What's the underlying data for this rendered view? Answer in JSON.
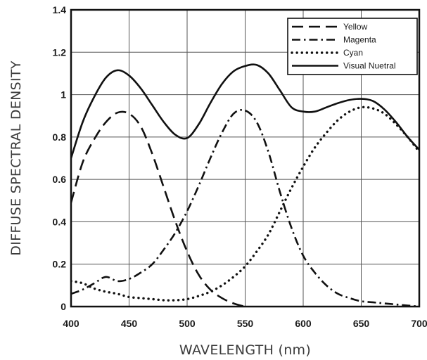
{
  "chart_data": {
    "type": "line",
    "xlabel": "WAVELENGTH (nm)",
    "ylabel": "DIFFUSE SPECTRAL DENSITY",
    "xlim": [
      400,
      700
    ],
    "ylim": [
      0,
      1.4
    ],
    "x_ticks": [
      "400",
      "450",
      "500",
      "550",
      "600",
      "650",
      "700"
    ],
    "y_ticks": [
      "0",
      "0.2",
      "0.4",
      "0.6",
      "0.8",
      "1",
      "1.2",
      "1.4"
    ],
    "grid": true,
    "legend_position": "top-right",
    "series": [
      {
        "name": "Yellow",
        "style": "dashed",
        "x": [
          400,
          410,
          420,
          430,
          440,
          450,
          460,
          470,
          480,
          490,
          500,
          510,
          520,
          530,
          540,
          550,
          560,
          580,
          600,
          620,
          640,
          660,
          680,
          700
        ],
        "y": [
          0.49,
          0.68,
          0.79,
          0.87,
          0.915,
          0.91,
          0.85,
          0.72,
          0.56,
          0.4,
          0.26,
          0.15,
          0.08,
          0.04,
          0.015,
          0.0,
          -0.01,
          -0.01,
          -0.01,
          -0.01,
          -0.01,
          -0.01,
          -0.01,
          -0.01
        ]
      },
      {
        "name": "Magenta",
        "style": "dash-dot",
        "x": [
          400,
          410,
          420,
          430,
          440,
          450,
          460,
          470,
          480,
          490,
          500,
          510,
          520,
          530,
          540,
          550,
          560,
          570,
          580,
          590,
          600,
          610,
          620,
          630,
          640,
          650,
          660,
          670,
          680,
          690,
          700
        ],
        "y": [
          0.06,
          0.08,
          0.11,
          0.14,
          0.12,
          0.13,
          0.16,
          0.2,
          0.27,
          0.35,
          0.45,
          0.57,
          0.7,
          0.82,
          0.91,
          0.925,
          0.87,
          0.73,
          0.54,
          0.37,
          0.24,
          0.16,
          0.1,
          0.06,
          0.04,
          0.025,
          0.02,
          0.015,
          0.01,
          0.005,
          0.0
        ]
      },
      {
        "name": "Cyan",
        "style": "dotted",
        "x": [
          400,
          410,
          420,
          430,
          440,
          450,
          460,
          470,
          480,
          490,
          500,
          510,
          520,
          530,
          540,
          550,
          560,
          570,
          580,
          590,
          600,
          610,
          620,
          630,
          640,
          650,
          660,
          670,
          680,
          690,
          700
        ],
        "y": [
          0.12,
          0.11,
          0.085,
          0.07,
          0.06,
          0.045,
          0.04,
          0.035,
          0.03,
          0.03,
          0.035,
          0.05,
          0.07,
          0.1,
          0.14,
          0.19,
          0.26,
          0.34,
          0.45,
          0.56,
          0.66,
          0.75,
          0.82,
          0.88,
          0.92,
          0.94,
          0.935,
          0.91,
          0.86,
          0.8,
          0.73
        ]
      },
      {
        "name": "Visual Nuetral",
        "style": "solid",
        "x": [
          400,
          410,
          420,
          430,
          440,
          450,
          460,
          470,
          480,
          490,
          500,
          510,
          520,
          530,
          540,
          550,
          560,
          570,
          580,
          590,
          600,
          610,
          620,
          630,
          640,
          650,
          660,
          670,
          680,
          690,
          700
        ],
        "y": [
          0.7,
          0.87,
          0.99,
          1.08,
          1.115,
          1.09,
          1.03,
          0.95,
          0.87,
          0.81,
          0.795,
          0.86,
          0.96,
          1.05,
          1.11,
          1.135,
          1.14,
          1.1,
          1.02,
          0.94,
          0.92,
          0.92,
          0.94,
          0.96,
          0.975,
          0.98,
          0.97,
          0.93,
          0.87,
          0.8,
          0.74
        ]
      }
    ]
  }
}
